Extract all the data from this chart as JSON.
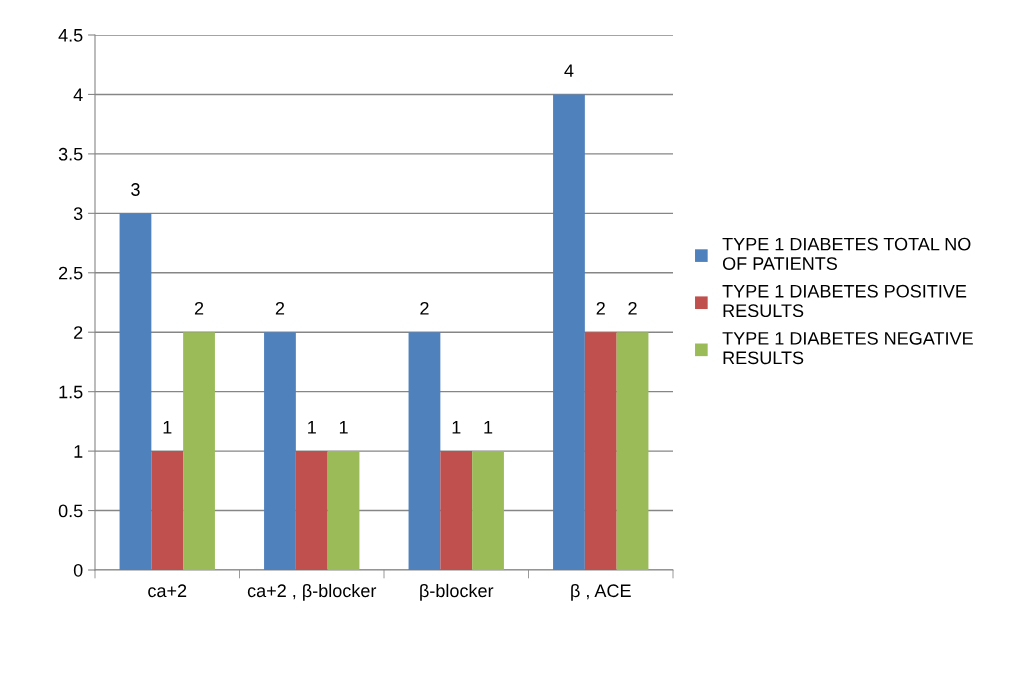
{
  "chart_data": {
    "type": "bar",
    "categories": [
      "ca+2",
      "ca+2 , β-blocker",
      "β-blocker",
      "β , ACE"
    ],
    "series": [
      {
        "name": "TYPE 1 DIABETES TOTAL NO OF PATIENTS",
        "color": "#4f81bd",
        "values": [
          3,
          2,
          2,
          4
        ]
      },
      {
        "name": "TYPE 1 DIABETES POSITIVE RESULTS",
        "color": "#c0504d",
        "values": [
          1,
          1,
          1,
          2
        ]
      },
      {
        "name": "TYPE 1 DIABETES NEGATIVE RESULTS",
        "color": "#9bbb59",
        "values": [
          2,
          1,
          1,
          2
        ]
      }
    ],
    "ylim": [
      0,
      4.5
    ],
    "yticks": [
      0,
      0.5,
      1,
      1.5,
      2,
      2.5,
      3,
      3.5,
      4,
      4.5
    ],
    "grid": "y",
    "legend": "right",
    "data_labels": true
  }
}
